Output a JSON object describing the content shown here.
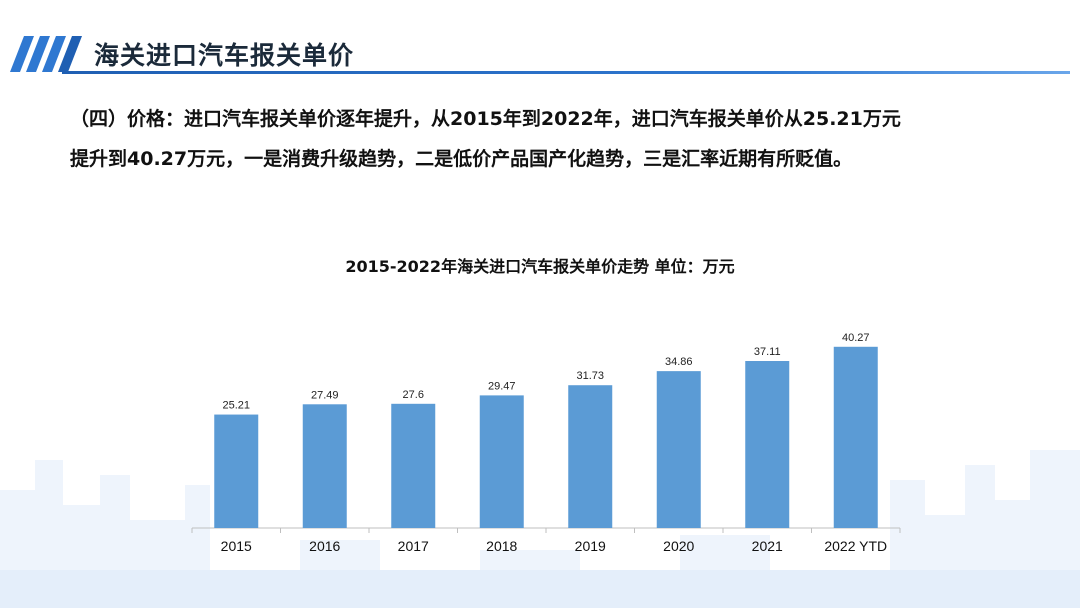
{
  "header": {
    "title": "海关进口汽车报关单价"
  },
  "body": {
    "line1": "（四）价格：进口汽车报关单价逐年提升，从2015年到2022年，进口汽车报关单价从25.21万元",
    "line2": "提升到40.27万元，一是消费升级趋势，二是低价产品国产化趋势，三是汇率近期有所贬值。"
  },
  "colors": {
    "bar": "#5b9bd5",
    "accent": "#2f78d1",
    "axis": "#bfbfbf",
    "skyline": "#eaf2fb"
  },
  "chart_data": {
    "type": "bar",
    "title": "2015-2022年海关进口汽车报关单价走势  单位：万元",
    "categories": [
      "2015",
      "2016",
      "2017",
      "2018",
      "2019",
      "2020",
      "2021",
      "2022 YTD"
    ],
    "values": [
      25.21,
      27.49,
      27.6,
      29.47,
      31.73,
      34.86,
      37.11,
      40.27
    ],
    "value_labels": [
      "25.21",
      "27.49",
      "27.6",
      "29.47",
      "31.73",
      "34.86",
      "37.11",
      "40.27"
    ],
    "ylim": [
      0,
      45
    ],
    "grid": false,
    "legend": "none"
  }
}
